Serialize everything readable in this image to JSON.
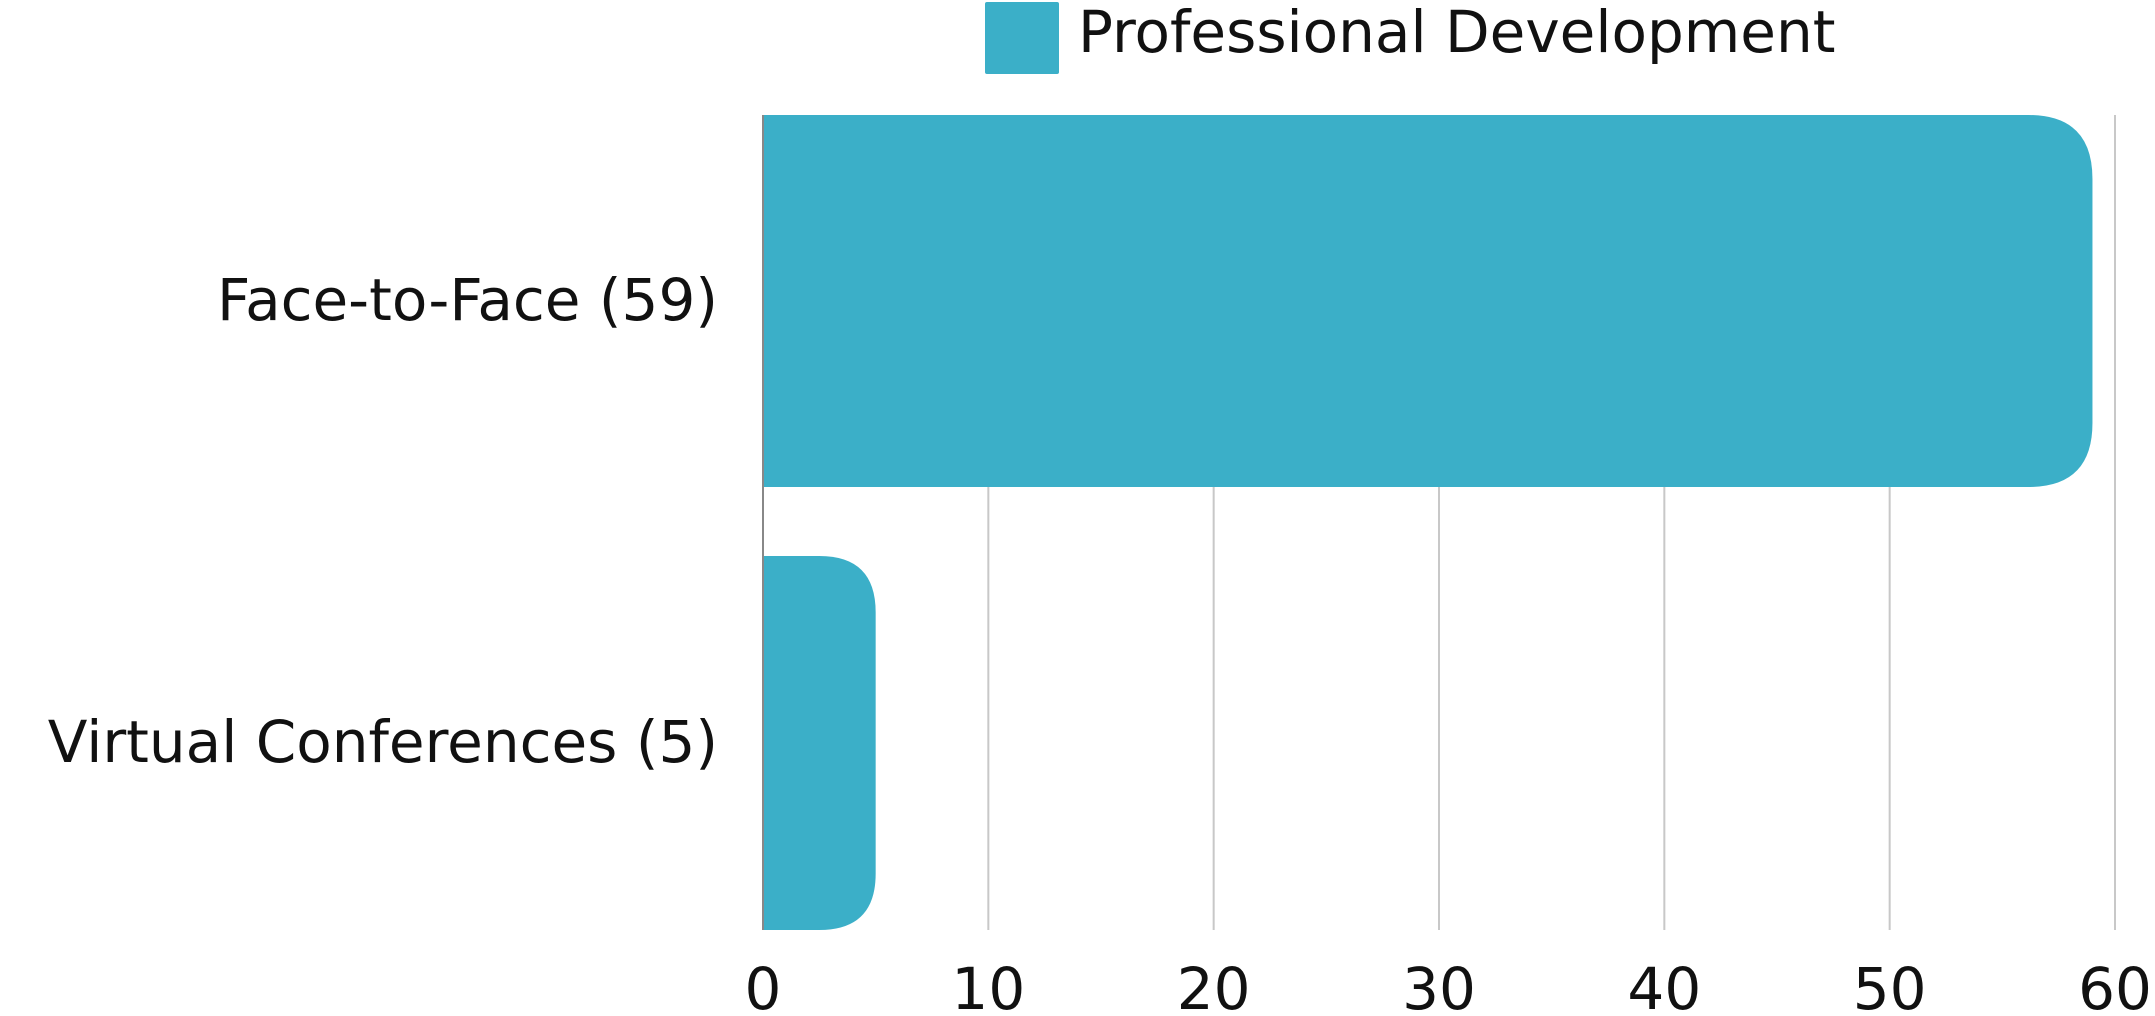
{
  "chart_data": {
    "type": "bar",
    "orientation": "horizontal",
    "categories": [
      "Face-to-Face (59)",
      "Virtual Conferences (5)"
    ],
    "series": [
      {
        "name": "Professional Development",
        "values": [
          59,
          5
        ],
        "color": "#3BAFC8"
      }
    ],
    "title": "",
    "xlabel": "",
    "ylabel": "",
    "xlim": [
      0,
      60
    ],
    "xticks": [
      0,
      10,
      20,
      30,
      40,
      50,
      60
    ],
    "grid": {
      "vertical": true,
      "color": "#C8C8C8"
    },
    "legend": {
      "position": "top-center"
    }
  }
}
